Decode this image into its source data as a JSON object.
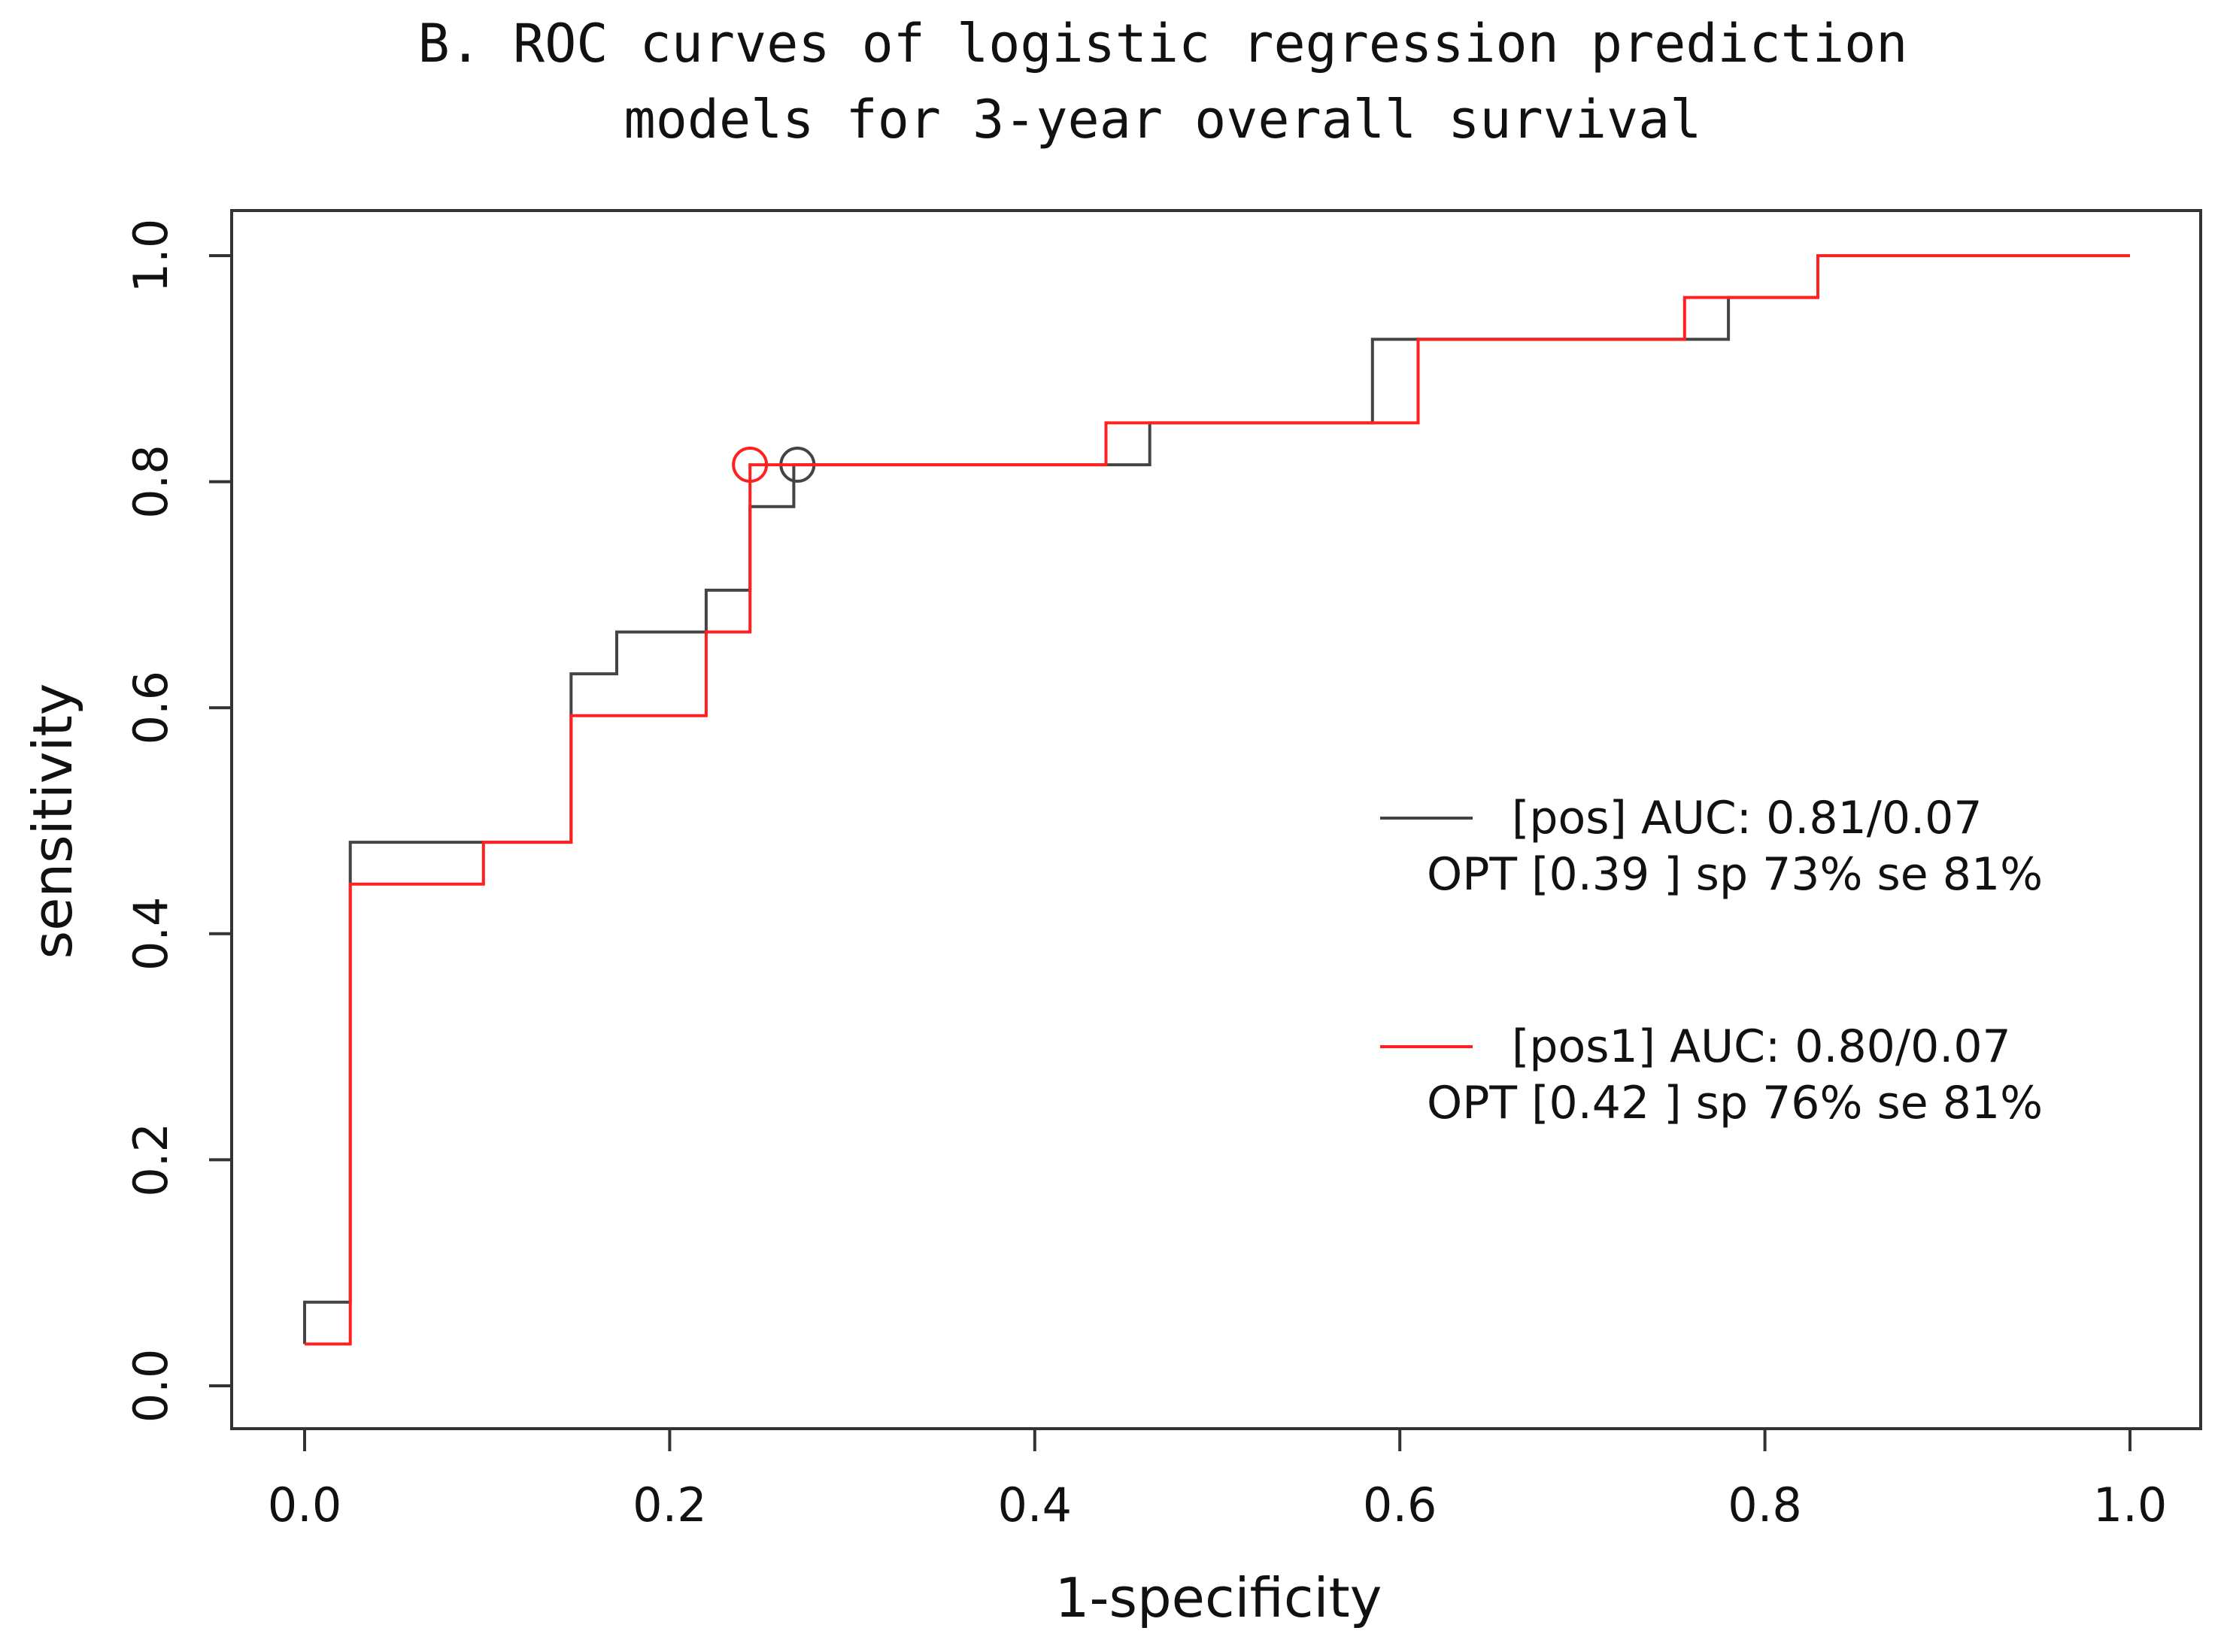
{
  "chart_data": {
    "type": "line",
    "title_line1": "B. ROC curves of logistic regression prediction",
    "title_line2": "models for 3-year overall survival",
    "xlabel": "1-specificity",
    "ylabel": "sensitivity",
    "xlim": [
      0.0,
      1.0
    ],
    "ylim": [
      0.0,
      1.0
    ],
    "xticks": [
      "0.0",
      "0.2",
      "0.4",
      "0.6",
      "0.8",
      "1.0"
    ],
    "yticks": [
      "0.0",
      "0.2",
      "0.4",
      "0.6",
      "0.8",
      "1.0"
    ],
    "grid": false,
    "legend_position": "right",
    "series": [
      {
        "name": "[pos]",
        "color": "#444444",
        "legend_line1": "[pos] AUC: 0.81/0.07",
        "legend_line2": "OPT [0.39 ] sp 73% se 81%",
        "auc": 0.81,
        "auc_se": 0.07,
        "optimal_point": {
          "x": 0.27,
          "y": 0.815
        },
        "x": [
          0.0,
          0.0,
          0.025,
          0.025,
          0.146,
          0.146,
          0.171,
          0.171,
          0.22,
          0.22,
          0.244,
          0.244,
          0.268,
          0.268,
          0.463,
          0.463,
          0.585,
          0.585,
          0.78,
          0.78,
          0.829,
          0.829,
          1.0
        ],
        "y": [
          0.037,
          0.074,
          0.074,
          0.481,
          0.481,
          0.63,
          0.63,
          0.667,
          0.667,
          0.704,
          0.704,
          0.778,
          0.778,
          0.815,
          0.815,
          0.852,
          0.852,
          0.926,
          0.926,
          0.963,
          0.963,
          1.0,
          1.0
        ]
      },
      {
        "name": "[pos1]",
        "color": "#ff2020",
        "legend_line1": "[pos1] AUC: 0.80/0.07",
        "legend_line2": "OPT [0.42 ] sp 76% se 81%",
        "auc": 0.8,
        "auc_se": 0.07,
        "optimal_point": {
          "x": 0.244,
          "y": 0.815
        },
        "x": [
          0.0,
          0.025,
          0.025,
          0.098,
          0.098,
          0.146,
          0.146,
          0.22,
          0.22,
          0.244,
          0.244,
          0.439,
          0.439,
          0.61,
          0.61,
          0.756,
          0.756,
          0.829,
          0.829,
          1.0
        ],
        "y": [
          0.037,
          0.037,
          0.444,
          0.444,
          0.481,
          0.481,
          0.593,
          0.593,
          0.667,
          0.667,
          0.815,
          0.815,
          0.852,
          0.852,
          0.926,
          0.926,
          0.963,
          0.963,
          1.0,
          1.0
        ]
      }
    ]
  }
}
